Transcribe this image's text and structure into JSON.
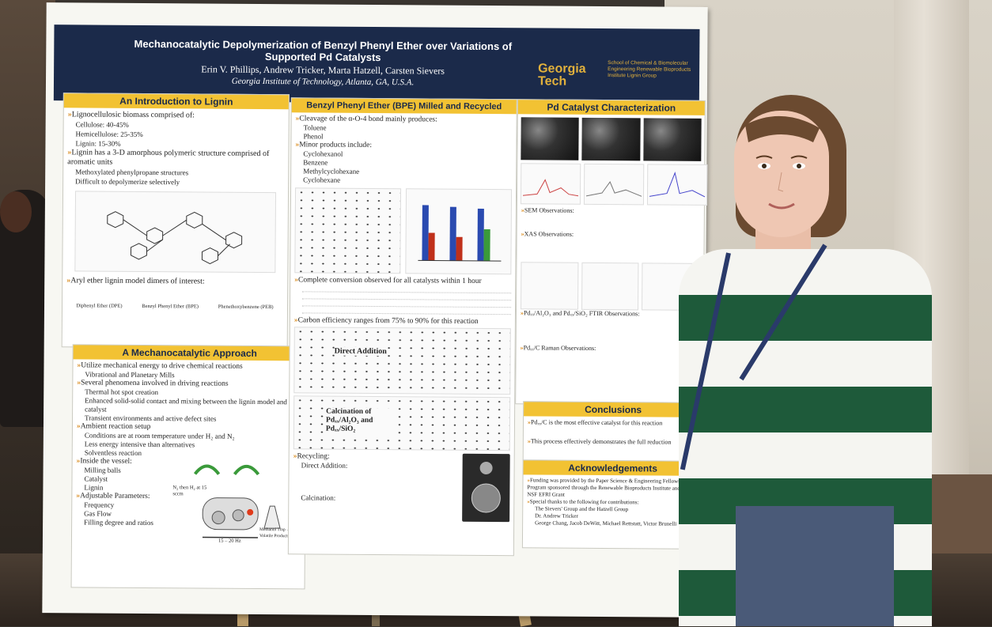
{
  "poster": {
    "title": "Mechanocatalytic Depolymerization of Benzyl Phenyl Ether over Variations of Supported Pd Catalysts",
    "authors": "Erin V. Phillips, Andrew Tricker, Marta Hatzell, Carsten Sievers",
    "affiliation": "Georgia Institute of Technology, Atlanta, GA, U.S.A.",
    "logo": "Georgia Tech",
    "logo_side": "School of Chemical & Biomolecular Engineering Renewable Bioproducts Institute Lignin Group",
    "intro": {
      "title": "An Introduction to Lignin",
      "l1": "Lignocellulosic biomass comprised of:",
      "l2": "Cellulose: 40-45%",
      "l3": "Hemicellulose: 25-35%",
      "l4": "Lignin: 15-30%",
      "l5": "Lignin has a 3-D amorphous polymeric structure comprised of aromatic units",
      "l6": "Methoxylated phenylpropane structures",
      "l7": "Difficult to depolymerize selectively",
      "l8": "Aryl ether lignin model dimers of interest:",
      "d1": "Diphenyl Ether (DPE)",
      "d2": "Benzyl Phenyl Ether (BPE)",
      "d3": "Phenethoxybenzene (PEB)"
    },
    "approach": {
      "title": "A Mechanocatalytic Approach",
      "l1": "Utilize mechanical energy to drive chemical reactions",
      "l2": "Vibrational and Planetary Mills",
      "l3": "Several phenomena involved in driving reactions",
      "l4": "Thermal hot spot creation",
      "l5": "Enhanced solid-solid contact and mixing between the lignin model and catalyst",
      "l6": "Transient environments and active defect sites",
      "l7": "Ambient reaction setup",
      "l8": "Conditions are at room temperature under H₂ and N₂",
      "l9": "Less energy intensive than alternatives",
      "l10": "Solventless reaction",
      "l11": "Inside the vessel:",
      "l12": "Milling balls",
      "l13": "Catalyst",
      "l14": "Lignin",
      "l15": "Adjustable Parameters:",
      "l16": "Frequency",
      "l17": "Gas Flow",
      "l18": "Filling degree and ratios",
      "fig_a": "N₂ then H₂ at 15 sccm",
      "fig_b": "Methanol Trap → Volatile Products",
      "fig_c": "15 – 20 Hz"
    },
    "bpe": {
      "title": "Benzyl Phenyl Ether (BPE) Milled and Recycled",
      "l1": "Cleavage of the α-O-4 bond mainly produces:",
      "l2": "Toluene",
      "l3": "Phenol",
      "l4": "Minor products include:",
      "l5": "Cyclohexanol",
      "l6": "Benzene",
      "l7": "Methylcyclohexane",
      "l8": "Cyclohexane",
      "l9": "Complete conversion observed for all catalysts within 1 hour",
      "l10": "Carbon efficiency ranges from 75% to 90% for this reaction",
      "chart1": "Direct Addition",
      "chart2": "Calcination of Pdₓₓ/Al₂O₃ and Pdₓₓ/SiO₂",
      "l11": "Recycling:",
      "l12": "Direct Addition:",
      "l13": "Calcination:"
    },
    "pd": {
      "title": "Pd Catalyst Characterization",
      "l1": "SEM Observations:",
      "l2": "XAS Observations:",
      "l3": "Pdₓₓ/Al₂O₃ and Pdₓₓ/SiO₂ FTIR Observations:",
      "l4": "Pdₓₓ/C Raman Observations:"
    },
    "conclusions": {
      "title": "Conclusions",
      "l1": "Pdₓₓ/C is the most effective catalyst for this reaction",
      "l2": "This process effectively demonstrates the full reduction"
    },
    "ack": {
      "title": "Acknowledgements",
      "l1": "Funding was provided by the Paper Science & Engineering Fellowship Program sponsored through the Renewable Bioproducts Institute and the NSF EFRI Grant",
      "l2": "Special thanks to the following for contributions:",
      "l3": "The Sievers' Group and the Hatzell Group",
      "l4": "Dr. Andrew Tricker",
      "l5": "George Chang, Jacob DeWitt, Michael Rettstatt, Victor Brunelli"
    }
  },
  "colors": {
    "header": "#1b2a4a",
    "accent": "#f2c233",
    "arrow": "#d98a1a",
    "sweater_green": "#1e5a3a"
  }
}
